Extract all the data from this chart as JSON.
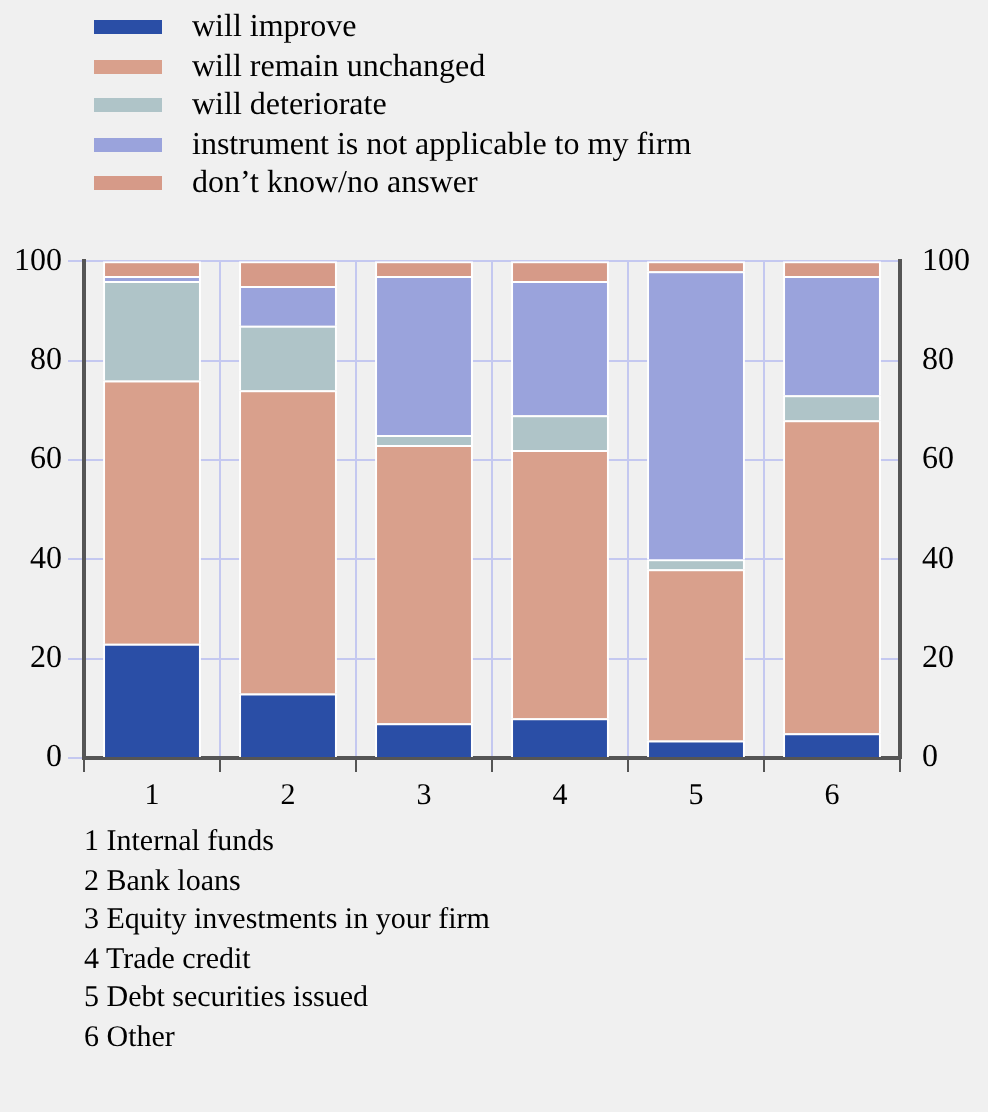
{
  "chart_data": {
    "type": "bar",
    "stacked": true,
    "categories": [
      "1",
      "2",
      "3",
      "4",
      "5",
      "6"
    ],
    "series": [
      {
        "name": "will improve",
        "color": "#2a4ea6",
        "values": [
          23,
          13,
          7,
          8,
          3.5,
          5
        ]
      },
      {
        "name": "will remain unchanged",
        "color": "#d9a08c",
        "values": [
          53,
          61,
          56,
          54,
          34.5,
          63
        ]
      },
      {
        "name": "will deteriorate",
        "color": "#afc4c8",
        "values": [
          20,
          13,
          2,
          7,
          2,
          5
        ]
      },
      {
        "name": "instrument is not applicable to my firm",
        "color": "#9aa3dc",
        "values": [
          1,
          8,
          32,
          27,
          58,
          24
        ]
      },
      {
        "name": "don’t know/no answer",
        "color": "#d69a88",
        "values": [
          3,
          5,
          3,
          4,
          2,
          3
        ]
      }
    ],
    "ylim": [
      0,
      100
    ],
    "yticks": [
      0,
      20,
      40,
      60,
      80,
      100
    ],
    "y2lim": [
      0,
      100
    ],
    "y2ticks": [
      0,
      20,
      40,
      60,
      80,
      100
    ],
    "grid": true,
    "legend": "top",
    "annotations": [
      "1 Internal funds",
      "2 Bank loans",
      "3 Equity investments in your firm",
      "4 Trade credit",
      "5 Debt securities issued",
      "6 Other"
    ]
  }
}
